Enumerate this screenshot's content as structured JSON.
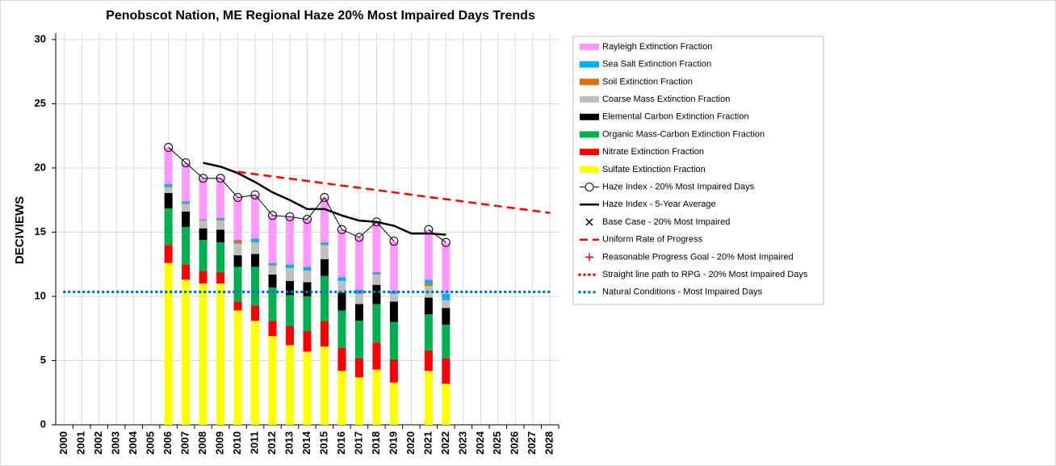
{
  "chart_data": {
    "type": "bar",
    "title": "Penobscot Nation, ME Regional Haze 20% Most Impaired Days Trends",
    "y_label": "DECIVIEWS",
    "categories": [
      "2000",
      "2001",
      "2002",
      "2003",
      "2004",
      "2005",
      "2006",
      "2007",
      "2008",
      "2009",
      "2010",
      "2011",
      "2012",
      "2013",
      "2014",
      "2015",
      "2016",
      "2017",
      "2018",
      "2019",
      "2020",
      "2021",
      "2022",
      "2023",
      "2024",
      "2025",
      "2026",
      "2027",
      "2028"
    ],
    "ylim": [
      0,
      30.5
    ],
    "yticks": [
      0,
      5,
      10,
      15,
      20,
      25,
      30
    ],
    "grid": true,
    "legend": "right",
    "series": [
      {
        "name": "Sulfate Extinction Fraction",
        "style": "stacked-bar",
        "color": "#ffff00",
        "values": [
          null,
          null,
          null,
          null,
          null,
          null,
          12.6,
          11.3,
          11.0,
          11.0,
          8.9,
          8.1,
          6.9,
          6.2,
          5.7,
          6.1,
          4.2,
          3.7,
          4.3,
          3.3,
          null,
          4.2,
          3.2,
          null,
          null,
          null,
          null,
          null,
          null
        ]
      },
      {
        "name": "Nitrate Extinction Fraction",
        "style": "stacked-bar",
        "color": "#ff0000",
        "values": [
          null,
          null,
          null,
          null,
          null,
          null,
          1.4,
          1.2,
          1.0,
          0.9,
          0.7,
          1.2,
          1.2,
          1.5,
          1.6,
          2.0,
          1.8,
          1.5,
          2.1,
          1.8,
          null,
          1.6,
          2.0,
          null,
          null,
          null,
          null,
          null,
          null
        ]
      },
      {
        "name": "Organic Mass-Carbon Extinction Fraction",
        "style": "stacked-bar",
        "color": "#00b050",
        "values": [
          null,
          null,
          null,
          null,
          null,
          null,
          2.85,
          2.9,
          2.4,
          2.3,
          2.7,
          3.0,
          2.6,
          2.4,
          2.7,
          3.5,
          2.9,
          2.9,
          3.0,
          2.9,
          null,
          2.8,
          2.6,
          null,
          null,
          null,
          null,
          null,
          null
        ]
      },
      {
        "name": "Elemental Carbon Extinction Fraction",
        "style": "stacked-bar",
        "color": "#000000",
        "values": [
          null,
          null,
          null,
          null,
          null,
          null,
          1.2,
          1.2,
          0.9,
          1.0,
          0.9,
          1.0,
          1.0,
          1.1,
          1.1,
          1.3,
          1.4,
          1.3,
          1.5,
          1.6,
          null,
          1.3,
          1.3,
          null,
          null,
          null,
          null,
          null,
          null
        ]
      },
      {
        "name": "Coarse Mass Extinction Fraction",
        "style": "stacked-bar",
        "color": "#bfbfbf",
        "values": [
          null,
          null,
          null,
          null,
          null,
          null,
          0.45,
          0.6,
          0.6,
          0.7,
          0.9,
          0.9,
          0.7,
          1.0,
          0.9,
          1.1,
          0.9,
          0.8,
          0.8,
          0.6,
          null,
          0.9,
          0.6,
          null,
          null,
          null,
          null,
          null,
          null
        ]
      },
      {
        "name": "Soil Extinction Fraction",
        "style": "stacked-bar",
        "color": "#e46c0a",
        "values": [
          null,
          null,
          null,
          null,
          null,
          null,
          0.05,
          0.05,
          0.05,
          0.05,
          0.2,
          0.05,
          0.05,
          0.05,
          0.05,
          0.05,
          0.05,
          0.05,
          0.05,
          0.05,
          null,
          0.2,
          0.05,
          null,
          null,
          null,
          null,
          null,
          null
        ]
      },
      {
        "name": "Sea Salt Extinction Fraction",
        "style": "stacked-bar",
        "color": "#00b0f0",
        "values": [
          null,
          null,
          null,
          null,
          null,
          null,
          0.2,
          0.15,
          0.05,
          0.15,
          0.1,
          0.25,
          0.15,
          0.25,
          0.25,
          0.15,
          0.25,
          0.25,
          0.15,
          0.15,
          null,
          0.3,
          0.45,
          null,
          null,
          null,
          null,
          null,
          null
        ]
      },
      {
        "name": "Rayleigh Extinction Fraction",
        "style": "stacked-bar",
        "color": "#ff99ff",
        "values": [
          null,
          null,
          null,
          null,
          null,
          null,
          2.85,
          3.0,
          3.2,
          3.1,
          3.3,
          3.4,
          3.7,
          3.7,
          3.7,
          3.5,
          3.7,
          4.1,
          3.9,
          3.9,
          null,
          3.9,
          4.0,
          null,
          null,
          null,
          null,
          null,
          null
        ]
      },
      {
        "name": "Haze Index - 20% Most Impaired Days",
        "style": "line-marker",
        "color": "#000000",
        "values": [
          null,
          null,
          null,
          null,
          null,
          null,
          21.6,
          20.4,
          19.2,
          19.2,
          17.7,
          17.9,
          16.3,
          16.2,
          16.0,
          17.7,
          15.2,
          14.6,
          15.8,
          14.3,
          null,
          15.2,
          14.2,
          null,
          null,
          null,
          null,
          null,
          null
        ]
      },
      {
        "name": "Haze Index - 5-Year Average",
        "style": "line",
        "color": "#000000",
        "values": [
          null,
          null,
          null,
          null,
          null,
          null,
          null,
          null,
          20.4,
          20.1,
          19.6,
          18.9,
          18.1,
          17.5,
          16.8,
          16.8,
          16.3,
          15.9,
          15.8,
          15.5,
          14.9,
          14.9,
          14.8,
          null,
          null,
          null,
          null,
          null,
          null
        ]
      },
      {
        "name": "Base Case - 20% Most Impaired",
        "style": "x-marker",
        "color": "#000000",
        "values": [
          null,
          null,
          null,
          null,
          null,
          null,
          null,
          null,
          null,
          null,
          null,
          null,
          null,
          null,
          null,
          null,
          null,
          null,
          null,
          null,
          null,
          null,
          null,
          null,
          null,
          null,
          null,
          null,
          null
        ]
      },
      {
        "name": "Uniform Rate of Progress",
        "style": "dashed",
        "color": "#ff0000",
        "values": [
          null,
          null,
          null,
          null,
          null,
          null,
          null,
          null,
          null,
          null,
          19.7,
          19.52,
          19.34,
          19.17,
          18.99,
          18.81,
          18.63,
          18.46,
          18.28,
          18.1,
          17.92,
          17.74,
          17.57,
          17.39,
          17.21,
          17.03,
          16.86,
          16.68,
          16.5
        ]
      },
      {
        "name": "Reasonable Progress Goal - 20% Most Impaired",
        "style": "plus-marker",
        "color": "#ff0000",
        "values": [
          null,
          null,
          null,
          null,
          null,
          null,
          null,
          null,
          null,
          null,
          null,
          null,
          null,
          null,
          null,
          null,
          null,
          null,
          null,
          null,
          null,
          null,
          null,
          null,
          null,
          null,
          null,
          null,
          null
        ]
      },
      {
        "name": "Straight line path to RPG - 20% Most Impaired Days",
        "style": "dotted",
        "color": "#ff0000",
        "values": [
          null,
          null,
          null,
          null,
          null,
          null,
          null,
          null,
          null,
          null,
          null,
          null,
          null,
          null,
          null,
          null,
          null,
          null,
          null,
          null,
          null,
          null,
          null,
          null,
          null,
          null,
          null,
          null,
          null
        ]
      },
      {
        "name": "Natural Conditions - Most Impaired Days",
        "style": "dotted",
        "color": "#0070c0",
        "values": [
          10.35,
          10.35,
          10.35,
          10.35,
          10.35,
          10.35,
          10.35,
          10.35,
          10.35,
          10.35,
          10.35,
          10.35,
          10.35,
          10.35,
          10.35,
          10.35,
          10.35,
          10.35,
          10.35,
          10.35,
          10.35,
          10.35,
          10.35,
          10.35,
          10.35,
          10.35,
          10.35,
          10.35,
          10.35
        ]
      }
    ]
  }
}
